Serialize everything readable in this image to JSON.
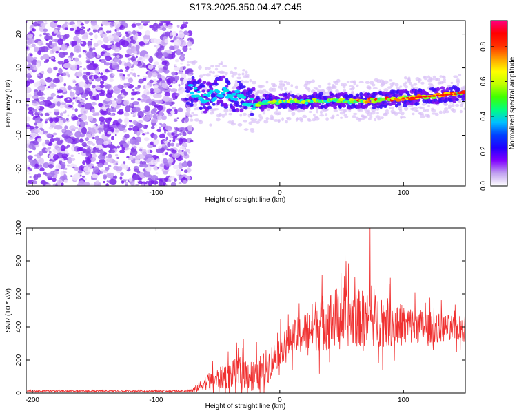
{
  "figure_title": "S173.2025.350.04.47.C45",
  "chart_data": [
    {
      "type": "heatmap",
      "title": "S173.2025.350.04.47.C45",
      "xlabel": "Height of straight line (km)",
      "ylabel": "Frequency (Hz)",
      "xlim": [
        -205,
        150
      ],
      "ylim": [
        -25,
        24
      ],
      "xticks": [
        -200,
        -100,
        0,
        100
      ],
      "yticks": [
        -20,
        -10,
        0,
        10,
        20
      ],
      "colormap": [
        "#e8d4f8",
        "#b090f0",
        "#8000ff",
        "#4020ff",
        "#0060ff",
        "#00d8ff",
        "#00ff80",
        "#40ff00",
        "#c0ff00",
        "#ffff00",
        "#ffa000",
        "#ff3000",
        "#ff0000",
        "#ff0080"
      ],
      "noise_region_km": [
        -205,
        -75
      ],
      "signal_ridge": {
        "x": [
          -75,
          -60,
          -45,
          -30,
          -20,
          -10,
          0,
          20,
          40,
          60,
          80,
          100,
          120,
          150
        ],
        "frequency": [
          4,
          1,
          3,
          1,
          -1,
          0,
          0,
          0,
          0.5,
          0,
          0.5,
          1,
          1.5,
          2.5
        ]
      },
      "colorbar": {
        "label": "Normalized spectral amplitude",
        "range": [
          0,
          0.95
        ],
        "ticks": [
          0.0,
          0.2,
          0.4,
          0.6,
          0.8
        ]
      }
    },
    {
      "type": "line",
      "title": "",
      "xlabel": "Height of straight line (km)",
      "ylabel": "SNR (10 * v/v)",
      "xlim": [
        -205,
        150
      ],
      "ylim": [
        0,
        1000
      ],
      "xticks": [
        -200,
        -100,
        0,
        100
      ],
      "yticks": [
        0,
        200,
        400,
        600,
        800,
        1000
      ],
      "color": "#f03030",
      "envelope": {
        "x": [
          -205,
          -75,
          -70,
          -60,
          -50,
          -40,
          -30,
          -20,
          -10,
          0,
          10,
          20,
          30,
          40,
          50,
          60,
          70,
          80,
          90,
          100,
          110,
          120,
          130,
          140,
          150
        ],
        "baseline": [
          12,
          12,
          15,
          60,
          80,
          100,
          120,
          90,
          150,
          250,
          320,
          350,
          400,
          420,
          450,
          440,
          430,
          420,
          410,
          400,
          395,
          390,
          385,
          380,
          380
        ],
        "amplitude": [
          12,
          12,
          30,
          80,
          120,
          150,
          180,
          180,
          200,
          160,
          180,
          240,
          300,
          330,
          340,
          330,
          310,
          290,
          260,
          230,
          200,
          180,
          160,
          150,
          150
        ]
      },
      "peak": {
        "x": 73,
        "y": 1000
      }
    }
  ]
}
